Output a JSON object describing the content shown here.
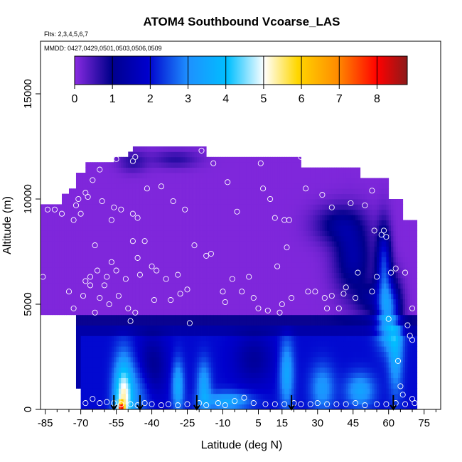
{
  "chart_data": {
    "type": "heatmap",
    "title": "ATOM4 Southbound Vcoarse_LAS",
    "subtitle_flights": "Flts: 2,3,4,5,6,7",
    "subtitle_dates": "MMDD: 0427,0429,0501,0503,0506,0509",
    "xlabel": "Latitude (deg N)",
    "ylabel": "Altitude (m)",
    "xlim": [
      -87,
      82
    ],
    "ylim": [
      0,
      17500
    ],
    "x_ticks": [
      -85,
      -70,
      -55,
      -40,
      -25,
      -10,
      5,
      15,
      30,
      45,
      60,
      75
    ],
    "x_tick_labels": [
      "-85",
      "-70",
      "-55",
      "-40",
      "-25",
      "-10",
      "5",
      "15",
      "30",
      "45",
      "60",
      "75"
    ],
    "y_ticks": [
      0,
      5000,
      10000,
      15000
    ],
    "y_tick_labels": [
      "0",
      "5000",
      "10000",
      "15000"
    ],
    "colorbar": {
      "min": 0,
      "max": 8.8,
      "ticks": [
        0,
        1,
        2,
        3,
        4,
        5,
        6,
        7,
        8
      ],
      "tick_labels": [
        "0",
        "1",
        "2",
        "3",
        "4",
        "5",
        "6",
        "7",
        "8"
      ],
      "colors": [
        "#8A2BE2",
        "#00008B",
        "#0000CD",
        "#1E90FF",
        "#00BFFF",
        "#FFFFFF",
        "#FFD700",
        "#FF8C00",
        "#FF0000",
        "#8B1A1A"
      ]
    },
    "profile_arrows_latitude": [
      -56,
      -45,
      -21,
      19,
      62
    ],
    "surface_hotspot": {
      "latitude": -53,
      "altitude": 200,
      "value": 7.0
    },
    "sample_points": [
      [
        -86,
        6300
      ],
      [
        -84,
        9500
      ],
      [
        -81,
        9500
      ],
      [
        -78,
        9300
      ],
      [
        -75,
        5600
      ],
      [
        -73,
        4800
      ],
      [
        -73,
        9000
      ],
      [
        -72,
        9700
      ],
      [
        -71,
        10000
      ],
      [
        -70,
        9300
      ],
      [
        -69,
        5400
      ],
      [
        -68,
        10300
      ],
      [
        -68,
        6100
      ],
      [
        -67,
        10100
      ],
      [
        -66,
        6300
      ],
      [
        -66,
        5900
      ],
      [
        -65,
        10900
      ],
      [
        -64,
        4600
      ],
      [
        -64,
        7800
      ],
      [
        -63,
        6600
      ],
      [
        -62,
        11400
      ],
      [
        -62,
        5300
      ],
      [
        -61,
        9900
      ],
      [
        -60,
        5900
      ],
      [
        -59,
        6300
      ],
      [
        -58,
        5000
      ],
      [
        -57,
        7000
      ],
      [
        -57,
        9000
      ],
      [
        -56,
        9600
      ],
      [
        -55,
        6600
      ],
      [
        -55,
        11900
      ],
      [
        -54,
        5400
      ],
      [
        -53,
        9500
      ],
      [
        -51,
        6200
      ],
      [
        -50,
        4800
      ],
      [
        -49,
        4200
      ],
      [
        -48,
        8000
      ],
      [
        -48,
        9300
      ],
      [
        -48,
        11800
      ],
      [
        -47,
        12000
      ],
      [
        -47,
        4600
      ],
      [
        -46,
        9100
      ],
      [
        -46,
        7200
      ],
      [
        -45,
        6400
      ],
      [
        -43,
        8000
      ],
      [
        -42,
        10500
      ],
      [
        -40,
        6800
      ],
      [
        -39,
        5200
      ],
      [
        -38,
        6600
      ],
      [
        -36,
        10600
      ],
      [
        -34,
        6200
      ],
      [
        -32,
        5200
      ],
      [
        -31,
        9900
      ],
      [
        -29,
        6400
      ],
      [
        -28,
        5500
      ],
      [
        -26,
        9500
      ],
      [
        -25,
        5700
      ],
      [
        -24,
        4100
      ],
      [
        -22,
        7800
      ],
      [
        -19,
        12300
      ],
      [
        -17,
        7300
      ],
      [
        -15,
        7400
      ],
      [
        -14,
        11700
      ],
      [
        -10,
        5600
      ],
      [
        -9,
        5100
      ],
      [
        -8,
        10800
      ],
      [
        -6,
        6200
      ],
      [
        -4,
        9400
      ],
      [
        -2,
        5600
      ],
      [
        1,
        6300
      ],
      [
        3,
        5300
      ],
      [
        5,
        4800
      ],
      [
        6,
        11700
      ],
      [
        7,
        10500
      ],
      [
        9,
        4700
      ],
      [
        10,
        10000
      ],
      [
        12,
        9100
      ],
      [
        13,
        6800
      ],
      [
        14,
        4600
      ],
      [
        15,
        5000
      ],
      [
        16,
        9000
      ],
      [
        17,
        7700
      ],
      [
        18,
        9000
      ],
      [
        19,
        5300
      ],
      [
        23,
        12000
      ],
      [
        25,
        10500
      ],
      [
        26,
        5600
      ],
      [
        29,
        5600
      ],
      [
        32,
        10200
      ],
      [
        33,
        5300
      ],
      [
        34,
        4800
      ],
      [
        36,
        9600
      ],
      [
        36,
        5400
      ],
      [
        39,
        4800
      ],
      [
        41,
        5500
      ],
      [
        42,
        5800
      ],
      [
        44,
        9800
      ],
      [
        46,
        5300
      ],
      [
        47,
        6500
      ],
      [
        50,
        9700
      ],
      [
        53,
        10400
      ],
      [
        53,
        5600
      ],
      [
        54,
        8500
      ],
      [
        55,
        6300
      ],
      [
        56,
        11500
      ],
      [
        57,
        8300
      ],
      [
        58,
        8500
      ],
      [
        59,
        8200
      ],
      [
        60,
        4300
      ],
      [
        61,
        6500
      ],
      [
        63,
        6700
      ],
      [
        64,
        2300
      ],
      [
        65,
        1100
      ],
      [
        66,
        700
      ],
      [
        67,
        6500
      ],
      [
        68,
        4000
      ],
      [
        69,
        3500
      ],
      [
        70,
        4800
      ],
      [
        70,
        3300
      ],
      [
        70,
        500
      ],
      [
        -56,
        300
      ],
      [
        -53,
        250
      ],
      [
        -49,
        250
      ],
      [
        -46,
        200
      ],
      [
        -43,
        300
      ],
      [
        -40,
        250
      ],
      [
        -36,
        200
      ],
      [
        -33,
        250
      ],
      [
        -29,
        200
      ],
      [
        -25,
        250
      ],
      [
        -20,
        300
      ],
      [
        -17,
        200
      ],
      [
        -12,
        300
      ],
      [
        -9,
        200
      ],
      [
        -5,
        400
      ],
      [
        -1,
        550
      ],
      [
        3,
        300
      ],
      [
        8,
        250
      ],
      [
        12,
        250
      ],
      [
        16,
        250
      ],
      [
        20,
        300
      ],
      [
        23,
        250
      ],
      [
        27,
        250
      ],
      [
        30,
        300
      ],
      [
        34,
        250
      ],
      [
        38,
        250
      ],
      [
        42,
        250
      ],
      [
        46,
        300
      ],
      [
        50,
        200
      ],
      [
        55,
        250
      ],
      [
        59,
        250
      ],
      [
        63,
        300
      ],
      [
        67,
        250
      ],
      [
        71,
        300
      ],
      [
        -68,
        300
      ],
      [
        -65,
        500
      ],
      [
        -62,
        300
      ],
      [
        -59,
        350
      ]
    ]
  }
}
